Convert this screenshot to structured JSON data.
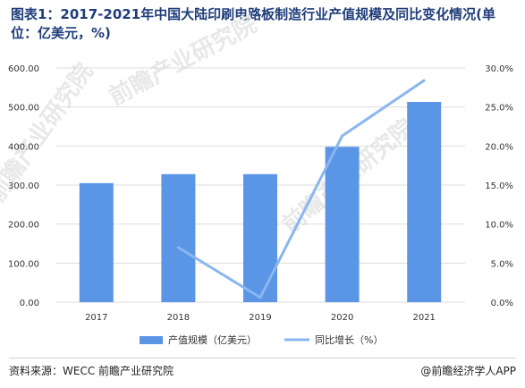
{
  "title": "图表1：2017-2021年中国大陆印刷电路板制造行业产值规模及同比变化情况(单位：亿美元，%)",
  "footer": {
    "source": "资料来源：WECC 前瞻产业研究院",
    "brand": "@前瞻经济学人APP"
  },
  "watermarks": [
    {
      "text": "前瞻产业研究院"
    },
    {
      "text": "前瞻产业研究院"
    },
    {
      "text": "前瞻产业研究院"
    }
  ],
  "colors": {
    "bar": "#5b95e6",
    "line": "#8ab6f0",
    "grid": "#dddddd",
    "title": "#1f3d7a"
  },
  "chart_data": {
    "type": "bar",
    "categories": [
      "2017",
      "2018",
      "2019",
      "2020",
      "2021"
    ],
    "series": [
      {
        "name": "产值规模（亿美元）",
        "type": "bar",
        "axis": "left",
        "values": [
          305,
          328,
          328,
          398,
          513
        ]
      },
      {
        "name": "同比增长（%）",
        "type": "line",
        "axis": "right",
        "values": [
          null,
          7.0,
          0.6,
          21.3,
          28.4
        ]
      }
    ],
    "y_left": {
      "ticks": [
        "0.00",
        "100.00",
        "200.00",
        "300.00",
        "400.00",
        "500.00",
        "600.00"
      ],
      "min": 0,
      "max": 600
    },
    "y_right": {
      "ticks": [
        "0.0%",
        "5.0%",
        "10.0%",
        "15.0%",
        "20.0%",
        "25.0%",
        "30.0%"
      ],
      "min": 0,
      "max": 30
    },
    "grid": true,
    "legend_position": "bottom"
  }
}
